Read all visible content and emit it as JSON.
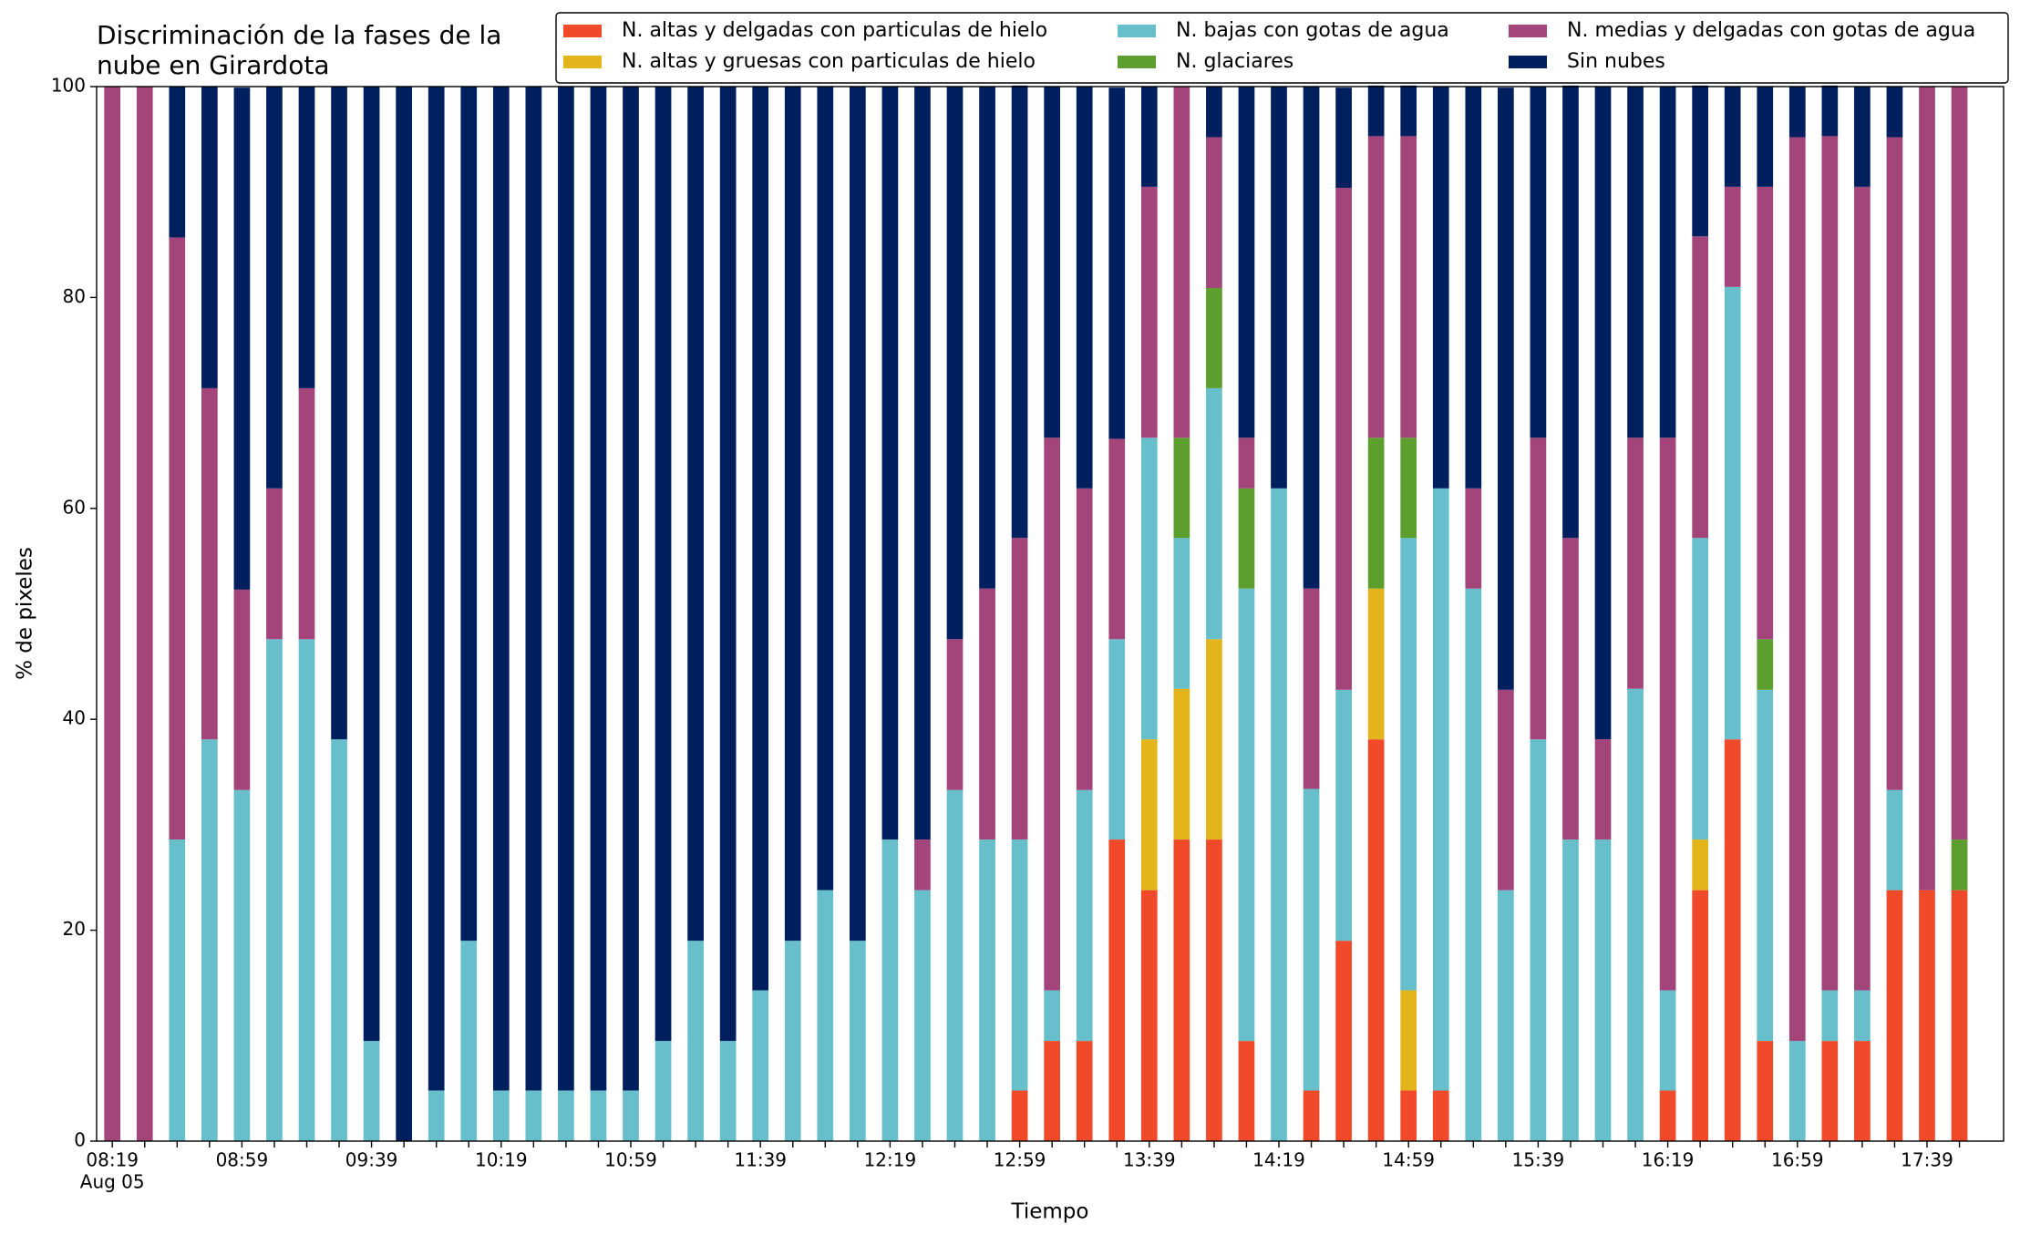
{
  "chart_data": {
    "type": "stacked_bar",
    "title_lines": [
      "Discriminación de la fases de la",
      "nube en Girardota"
    ],
    "x_label": "Tiempo",
    "y_label": "% de pixeles",
    "x_date_label": "Aug 05",
    "categories": [
      "08:19",
      null,
      null,
      null,
      "08:59",
      null,
      null,
      null,
      "09:39",
      null,
      null,
      null,
      "10:19",
      null,
      null,
      null,
      "10:59",
      null,
      null,
      null,
      "11:39",
      null,
      null,
      null,
      "12:19",
      null,
      null,
      null,
      "12:59",
      null,
      null,
      null,
      "13:39",
      null,
      null,
      null,
      "14:19",
      null,
      null,
      null,
      "14:59",
      null,
      null,
      null,
      "15:39",
      null,
      null,
      null,
      "16:19",
      null,
      null,
      null,
      "16:59",
      null,
      null,
      null,
      "17:39",
      null
    ],
    "ylim": [
      0,
      100
    ],
    "yticks": [
      0,
      20,
      40,
      60,
      80,
      100
    ],
    "grid": false,
    "legend_position": "top-right",
    "series": [
      {
        "name": "N. altas y delgadas con particulas de hielo",
        "color": "#f04a2a",
        "values": [
          0,
          0,
          0,
          0,
          0,
          0,
          0,
          0,
          0,
          0,
          0,
          0,
          0,
          0,
          0,
          0,
          0,
          0,
          0,
          0,
          0,
          0,
          0,
          0,
          0,
          0,
          0,
          0,
          4.8,
          9.5,
          9.5,
          28.6,
          23.8,
          28.6,
          28.6,
          9.5,
          0,
          4.8,
          19,
          38.1,
          4.8,
          4.8,
          0,
          0,
          0,
          0,
          0,
          0,
          4.8,
          23.8,
          38.1,
          9.5,
          0,
          9.5,
          9.5,
          23.8,
          23.8,
          23.8
        ]
      },
      {
        "name": "N. altas y gruesas con particulas de hielo",
        "color": "#e3b51a",
        "values": [
          0,
          0,
          0,
          0,
          0,
          0,
          0,
          0,
          0,
          0,
          0,
          0,
          0,
          0,
          0,
          0,
          0,
          0,
          0,
          0,
          0,
          0,
          0,
          0,
          0,
          0,
          0,
          0,
          0,
          0,
          0,
          0,
          14.3,
          14.3,
          19,
          0,
          0,
          0,
          0,
          14.3,
          9.5,
          0,
          0,
          0,
          0,
          0,
          0,
          0,
          0,
          4.8,
          0,
          0,
          0,
          0,
          0,
          0,
          0,
          0
        ]
      },
      {
        "name": "N. bajas con gotas de agua",
        "color": "#66bfca",
        "values": [
          0,
          0,
          28.6,
          38.1,
          33.3,
          47.6,
          47.6,
          38.1,
          9.5,
          0,
          4.8,
          19,
          4.8,
          4.8,
          4.8,
          4.8,
          4.8,
          9.5,
          19,
          9.5,
          14.3,
          19,
          23.8,
          19,
          28.6,
          23.8,
          33.3,
          28.6,
          23.8,
          4.8,
          23.8,
          19,
          28.6,
          14.3,
          23.8,
          42.9,
          61.9,
          28.6,
          23.8,
          0,
          42.9,
          57.1,
          52.4,
          23.8,
          38.1,
          28.6,
          28.6,
          42.9,
          9.5,
          28.6,
          42.9,
          33.3,
          9.5,
          4.8,
          4.8,
          9.5,
          0,
          0
        ]
      },
      {
        "name": "N. glaciares",
        "color": "#5c9f2e",
        "values": [
          0,
          0,
          0,
          0,
          0,
          0,
          0,
          0,
          0,
          0,
          0,
          0,
          0,
          0,
          0,
          0,
          0,
          0,
          0,
          0,
          0,
          0,
          0,
          0,
          0,
          0,
          0,
          0,
          0,
          0,
          0,
          0,
          0,
          9.5,
          9.5,
          9.5,
          0,
          0,
          0,
          14.3,
          9.5,
          0,
          0,
          0,
          0,
          0,
          0,
          0,
          0,
          0,
          0,
          4.8,
          0,
          0,
          0,
          0,
          0,
          4.8
        ]
      },
      {
        "name": "N. medias y delgadas con gotas de agua",
        "color": "#a3447a",
        "values": [
          100,
          100,
          57.1,
          33.3,
          19,
          14.3,
          23.8,
          0,
          0,
          0,
          0,
          0,
          0,
          0,
          0,
          0,
          0,
          0,
          0,
          0,
          0,
          0,
          0,
          0,
          0,
          4.8,
          14.3,
          23.8,
          28.6,
          52.4,
          28.6,
          19,
          23.8,
          33.3,
          14.3,
          4.8,
          0,
          19,
          47.6,
          28.6,
          28.6,
          0,
          9.5,
          19,
          28.6,
          28.6,
          9.5,
          23.8,
          52.4,
          28.6,
          9.5,
          42.9,
          85.7,
          81,
          76.2,
          61.9,
          76.2,
          71.4
        ]
      },
      {
        "name": "Sin nubes",
        "color": "#001f5f",
        "values": [
          0,
          0,
          14.3,
          28.6,
          47.6,
          38.1,
          28.6,
          61.9,
          90.5,
          100,
          95.2,
          81,
          95.2,
          95.2,
          95.2,
          95.2,
          95.2,
          90.5,
          81,
          90.5,
          85.7,
          81,
          76.2,
          81,
          71.4,
          71.4,
          52.4,
          47.6,
          42.9,
          33.3,
          38.1,
          33.3,
          9.5,
          0,
          4.8,
          33.3,
          38.1,
          47.6,
          9.5,
          4.8,
          4.8,
          38.1,
          38.1,
          57.1,
          33.3,
          42.9,
          61.9,
          33.3,
          33.3,
          14.3,
          9.5,
          9.5,
          4.8,
          4.8,
          9.5,
          4.8,
          0,
          0
        ]
      }
    ]
  }
}
